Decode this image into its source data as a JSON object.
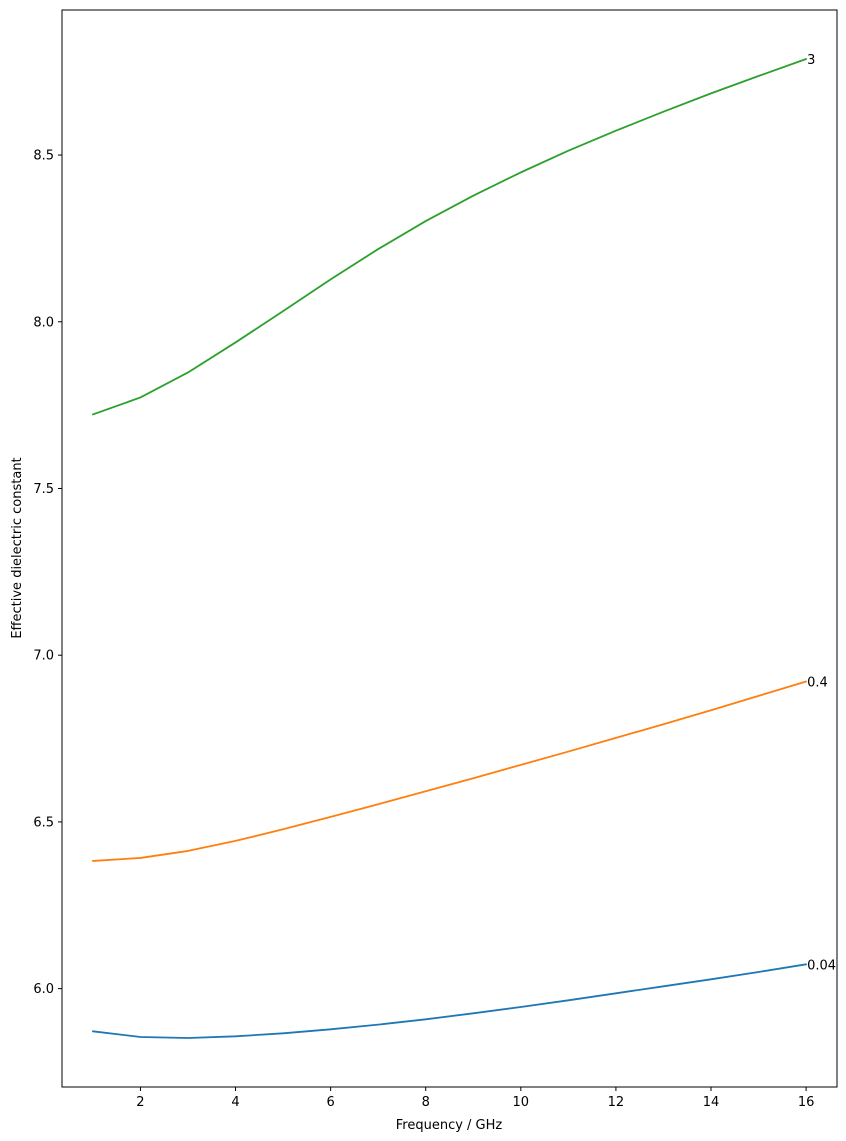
{
  "chart_data": {
    "type": "line",
    "title": "",
    "xlabel": "Frequency / GHz",
    "ylabel": "Effective dielectric constant",
    "xlim": [
      0.35,
      16.65
    ],
    "ylim": [
      5.705,
      8.935
    ],
    "xticks": [
      2,
      4,
      6,
      8,
      10,
      12,
      14,
      16
    ],
    "xtick_labels": [
      "2",
      "4",
      "6",
      "8",
      "10",
      "12",
      "14",
      "16"
    ],
    "yticks": [
      6.0,
      6.5,
      7.0,
      7.5,
      8.0,
      8.5
    ],
    "ytick_labels": [
      "6.0",
      "6.5",
      "7.0",
      "7.5",
      "8.0",
      "8.5"
    ],
    "grid": false,
    "legend": "none",
    "x": [
      1,
      2,
      3,
      4,
      5,
      6,
      7,
      8,
      9,
      10,
      11,
      12,
      13,
      14,
      15,
      16
    ],
    "series": [
      {
        "end_label": "0.04",
        "color": "#1f77b4",
        "values": [
          5.872,
          5.855,
          5.852,
          5.857,
          5.866,
          5.878,
          5.892,
          5.908,
          5.926,
          5.945,
          5.965,
          5.986,
          6.007,
          6.028,
          6.05,
          6.073
        ]
      },
      {
        "end_label": "0.4",
        "color": "#ff7f0e",
        "values": [
          6.383,
          6.392,
          6.413,
          6.443,
          6.478,
          6.515,
          6.553,
          6.592,
          6.631,
          6.671,
          6.711,
          6.752,
          6.793,
          6.835,
          6.878,
          6.921
        ]
      },
      {
        "end_label": "3",
        "color": "#2ca02c",
        "values": [
          7.722,
          7.773,
          7.848,
          7.938,
          8.032,
          8.127,
          8.218,
          8.302,
          8.378,
          8.448,
          8.513,
          8.573,
          8.63,
          8.685,
          8.737,
          8.788
        ]
      }
    ]
  }
}
